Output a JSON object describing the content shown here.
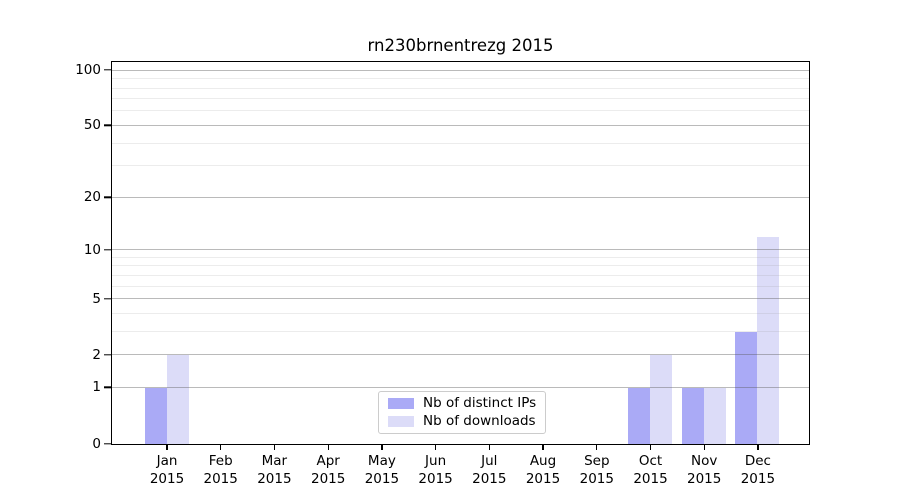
{
  "chart_data": {
    "type": "bar",
    "title": "rn230brnentrezg 2015",
    "year_label": "2015",
    "categories": [
      "Jan",
      "Feb",
      "Mar",
      "Apr",
      "May",
      "Jun",
      "Jul",
      "Aug",
      "Sep",
      "Oct",
      "Nov",
      "Dec"
    ],
    "series": [
      {
        "name": "Nb of distinct IPs",
        "color": "#aaaaf6",
        "values": [
          1,
          0,
          0,
          0,
          0,
          0,
          0,
          0,
          0,
          1,
          1,
          3
        ]
      },
      {
        "name": "Nb of downloads",
        "color": "#dcdcf8",
        "values": [
          2,
          0,
          0,
          0,
          0,
          0,
          0,
          0,
          0,
          2,
          1,
          12
        ]
      }
    ],
    "xlabel": "",
    "ylabel": "",
    "scale": "log1p",
    "ylim": [
      0,
      110
    ],
    "yticks": [
      0,
      1,
      2,
      5,
      10,
      20,
      50,
      100
    ],
    "minor_gridlines": [
      3,
      4,
      6,
      7,
      8,
      9,
      30,
      40,
      60,
      70,
      80,
      90
    ],
    "grid": "horizontal",
    "grid_on_top": true,
    "legend_position": "lower center"
  },
  "colors": {
    "background": "#ffffff",
    "spine": "#000000",
    "major_grid": "#b0b0b0",
    "minor_grid": "#e8e8e8",
    "legend_border": "#cccccc"
  }
}
